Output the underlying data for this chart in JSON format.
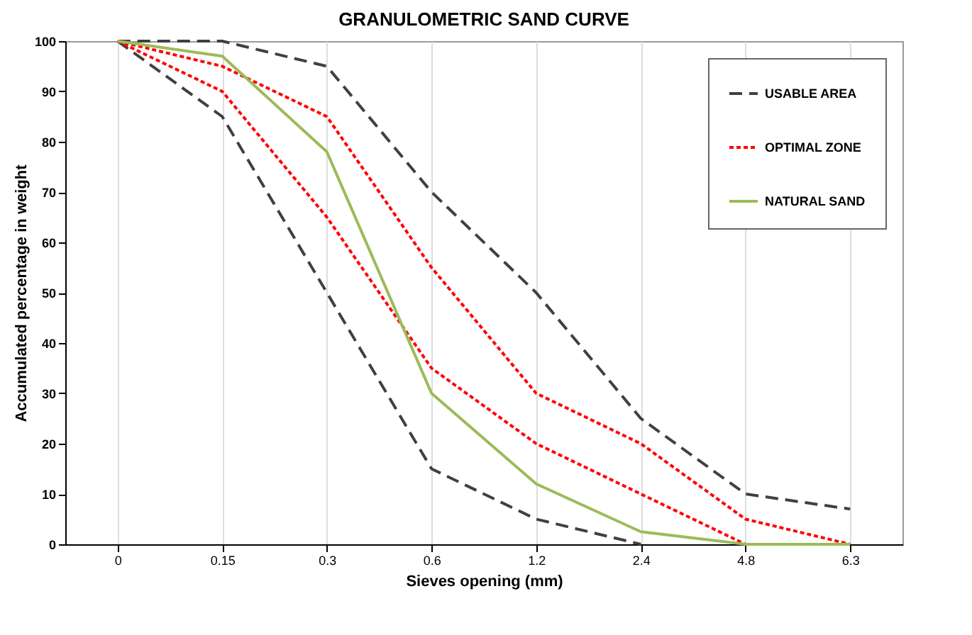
{
  "chart_data": {
    "type": "line",
    "title": "GRANULOMETRIC SAND CURVE",
    "xlabel": "Sieves opening (mm)",
    "ylabel": "Accumulated  percentage in weight",
    "categories": [
      "0",
      "0.15",
      "0.3",
      "0.6",
      "1.2",
      "2.4",
      "4.8",
      "6.3"
    ],
    "series": [
      {
        "name": "USABLE AREA",
        "color": "#404040",
        "line_style": "dashed",
        "values": [
          100,
          100,
          95,
          70,
          50,
          25,
          10,
          7
        ]
      },
      {
        "color": "#404040",
        "line_style": "dashed",
        "values": [
          100,
          85,
          50,
          15,
          5,
          0,
          null,
          null
        ]
      },
      {
        "name": "OPTIMAL ZONE",
        "color": "#ff0000",
        "line_style": "dotted",
        "values": [
          100,
          95,
          85,
          55,
          30,
          20,
          5,
          0
        ]
      },
      {
        "color": "#ff0000",
        "line_style": "dotted",
        "values": [
          100,
          90,
          65,
          35,
          20,
          10,
          0,
          null
        ]
      },
      {
        "name": "NATURAL SAND",
        "color": "#9bbb59",
        "line_style": "solid",
        "values": [
          100,
          97,
          78,
          30,
          12,
          2.5,
          0,
          0
        ]
      }
    ],
    "ylim": [
      0,
      100
    ],
    "yticks": [
      0,
      10,
      20,
      30,
      40,
      50,
      60,
      70,
      80,
      90,
      100
    ],
    "grid": "x",
    "legend": "top right",
    "marker": "none"
  }
}
